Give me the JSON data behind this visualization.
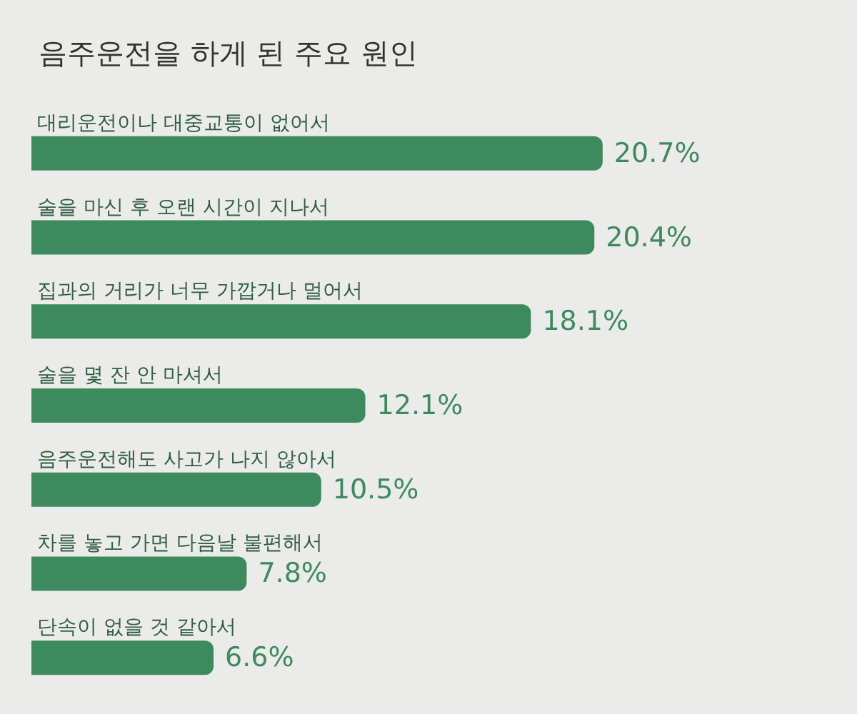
{
  "chart_data": {
    "type": "bar",
    "orientation": "horizontal",
    "title": "음주운전을 하게 된 주요 원인",
    "categories": [
      "대리운전이나 대중교통이 없어서",
      "술을 마신 후 오랜 시간이 지나서",
      "집과의 거리가 너무 가깝거나 멀어서",
      "술을 몇 잔 안 마셔서",
      "음주운전해도 사고가 나지 않아서",
      "차를 놓고 가면 다음날 불편해서",
      "단속이 없을 것 같아서"
    ],
    "values": [
      20.7,
      20.4,
      18.1,
      12.1,
      10.5,
      7.8,
      6.6
    ],
    "value_labels": [
      "20.7%",
      "20.4%",
      "18.1%",
      "12.1%",
      "10.5%",
      "7.8%",
      "6.6%"
    ],
    "color": "#3d8a5f"
  }
}
